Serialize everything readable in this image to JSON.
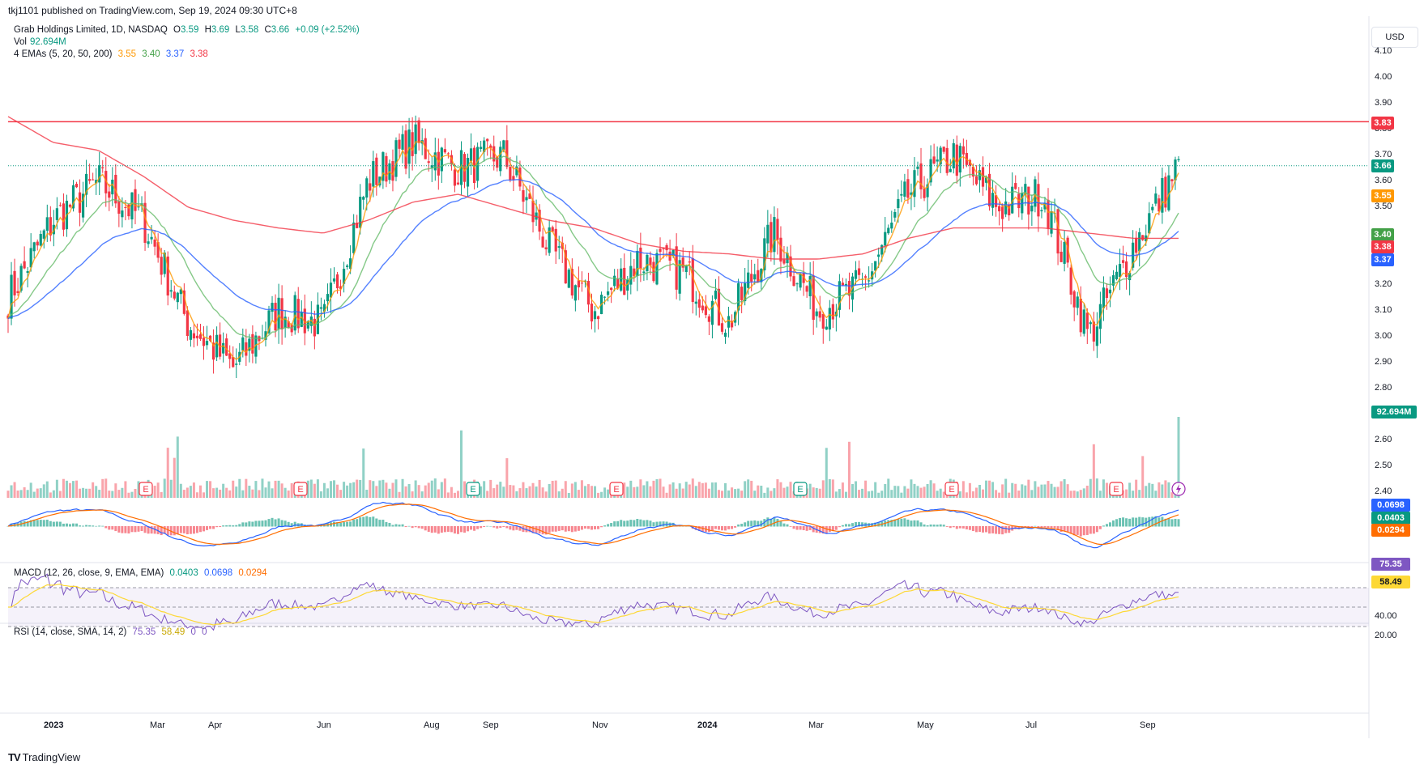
{
  "header": {
    "published": "tkj1101 published on TradingView.com, Sep 19, 2024 09:30 UTC+8",
    "title": "Grab Holdings Limited, 1D, NASDAQ",
    "ohlc": {
      "o_label": "O",
      "o": "3.59",
      "h_label": "H",
      "h": "3.69",
      "l_label": "L",
      "l": "3.58",
      "c_label": "C",
      "c": "3.66",
      "change": "+0.09 (+2.52%)"
    },
    "vol_label": "Vol",
    "vol_value": "92.694M",
    "ema_label": "4 EMAs (5, 20, 50, 200)",
    "ema_values": [
      "3.55",
      "3.40",
      "3.37",
      "3.38"
    ]
  },
  "currency": "USD",
  "brand": "TradingView",
  "colors": {
    "up": "#089981",
    "down": "#f23645",
    "ema5": "#ff9800",
    "ema20": "#66bb6a",
    "ema50": "#2962ff",
    "ema200": "#f23645",
    "hline": "#f23645",
    "macd": "#2962ff",
    "signal": "#ff6d00",
    "rsi": "#7e57c2",
    "rsi_ma": "#fdd835"
  },
  "price_axis": {
    "ticks": [
      "4.10",
      "4.00",
      "3.90",
      "3.80",
      "3.70",
      "3.60",
      "3.50",
      "3.40",
      "3.30",
      "3.20",
      "3.10",
      "3.00",
      "2.90",
      "2.80",
      "2.70",
      "2.60",
      "2.50",
      "2.40"
    ]
  },
  "price_tags": [
    {
      "label": "3.83",
      "price": 3.83,
      "color": "#f23645"
    },
    {
      "label": "3.66",
      "price": 3.66,
      "color": "#089981"
    },
    {
      "label": "3.55",
      "price": 3.55,
      "color": "#ff9800"
    },
    {
      "label": "3.40",
      "price": 3.4,
      "color": "#43a047"
    },
    {
      "label": "3.38",
      "price": 3.38,
      "color": "#f23645"
    },
    {
      "label": "3.37",
      "price": 3.37,
      "color": "#2962ff"
    },
    {
      "label": "92.694M",
      "price": 2.7,
      "color": "#089981"
    }
  ],
  "time_axis": [
    "2023",
    "Mar",
    "Apr",
    "Jun",
    "Aug",
    "Sep",
    "Nov",
    "2024",
    "Mar",
    "May",
    "Jul",
    "Sep"
  ],
  "event_markers": [
    "E",
    "E",
    "E",
    "E",
    "E",
    "E",
    "E"
  ],
  "macd": {
    "label": "MACD (12, 26, close, 9, EMA, EMA)",
    "values": [
      "0.0403",
      "0.0698",
      "0.0294"
    ],
    "tags": [
      {
        "label": "0.0698",
        "color": "#2962ff"
      },
      {
        "label": "0.0403",
        "color": "#089981"
      },
      {
        "label": "0.0294",
        "color": "#ff6d00"
      }
    ]
  },
  "rsi": {
    "label": "RSI (14, close, SMA, 14, 2)",
    "values": [
      "75.35",
      "58.49",
      "0",
      "0"
    ],
    "tags": [
      {
        "label": "75.35",
        "color": "#7e57c2"
      },
      {
        "label": "58.49",
        "color": "#fdd835"
      }
    ],
    "axis": [
      "40.00",
      "20.00"
    ]
  },
  "chart_data": {
    "type": "line",
    "title": "Grab Holdings Limited, 1D, NASDAQ",
    "xlabel": "",
    "ylabel": "",
    "ylim": [
      2.4,
      4.1
    ],
    "horizontal_line": 3.83,
    "last_close": 3.66,
    "x": [
      "2023-01",
      "2023-01",
      "2023-02",
      "2023-03",
      "2023-03",
      "2023-04",
      "2023-05",
      "2023-06",
      "2023-07",
      "2023-08",
      "2023-09",
      "2023-09",
      "2023-10",
      "2023-11",
      "2023-12",
      "2024-01",
      "2024-01",
      "2024-02",
      "2024-03",
      "2024-04",
      "2024-05",
      "2024-05",
      "2024-06",
      "2024-07",
      "2024-08",
      "2024-08",
      "2024-09"
    ],
    "series": [
      {
        "name": "close",
        "values": [
          3.15,
          3.45,
          3.6,
          3.45,
          3.05,
          2.88,
          3.1,
          3.05,
          3.6,
          3.75,
          3.65,
          3.7,
          3.35,
          3.1,
          3.3,
          3.25,
          3.05,
          3.4,
          3.1,
          3.2,
          3.55,
          3.7,
          3.5,
          3.55,
          3.0,
          3.35,
          3.66
        ]
      },
      {
        "name": "EMA 200",
        "values": [
          3.85,
          3.75,
          3.72,
          3.62,
          3.5,
          3.45,
          3.42,
          3.4,
          3.45,
          3.52,
          3.55,
          3.5,
          3.45,
          3.42,
          3.36,
          3.33,
          3.32,
          3.3,
          3.3,
          3.32,
          3.38,
          3.42,
          3.42,
          3.42,
          3.4,
          3.38,
          3.38
        ]
      }
    ]
  }
}
